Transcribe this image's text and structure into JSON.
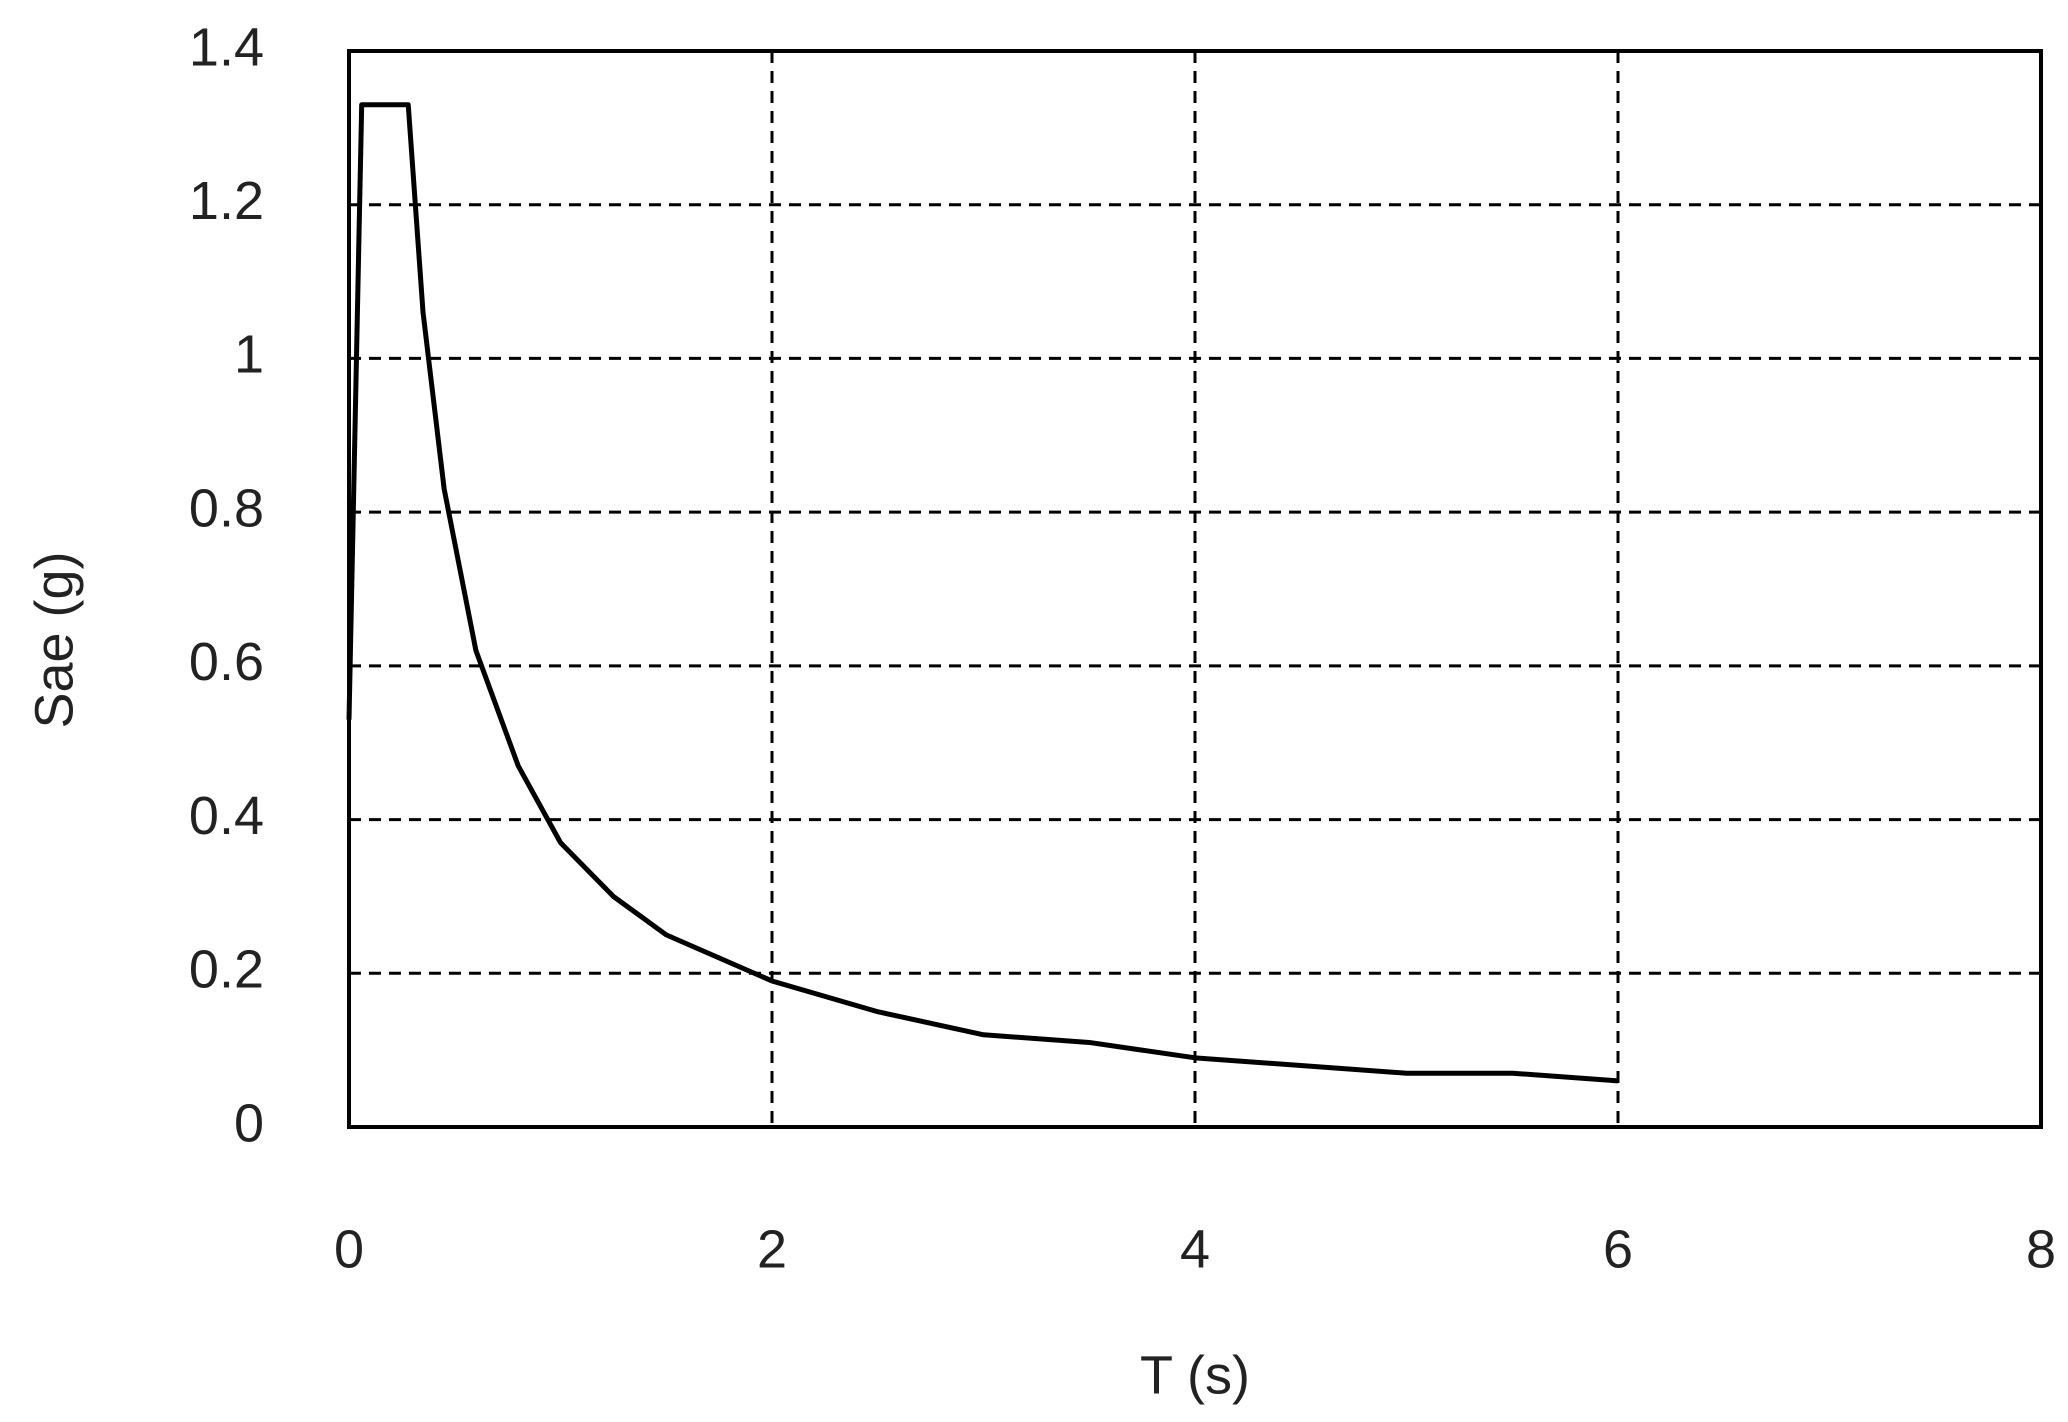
{
  "chart_data": {
    "type": "line",
    "xlabel": "T (s)",
    "ylabel": "Sae (g)",
    "x": [
      0,
      0.06,
      0.28,
      0.35,
      0.45,
      0.6,
      0.8,
      1.0,
      1.25,
      1.5,
      2,
      2.5,
      3,
      3.5,
      4,
      4.5,
      5,
      5.5,
      6
    ],
    "series": [
      {
        "color": "#000000",
        "values": [
          0.53,
          1.33,
          1.33,
          1.06,
          0.83,
          0.62,
          0.47,
          0.37,
          0.3,
          0.25,
          0.19,
          0.15,
          0.12,
          0.11,
          0.09,
          0.08,
          0.07,
          0.07,
          0.06
        ]
      }
    ],
    "xlim": [
      0,
      8
    ],
    "xticks": [
      0,
      2,
      4,
      6,
      8
    ],
    "ylim": [
      0,
      1.4
    ],
    "yticks": [
      0,
      0.2,
      0.4,
      0.6,
      0.8,
      1,
      1.2,
      1.4
    ],
    "grid": true
  }
}
